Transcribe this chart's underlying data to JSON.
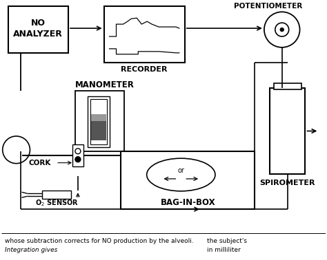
{
  "bg_color": "#ffffff",
  "line_color": "#000000",
  "dark_gray": "#555555",
  "mid_gray": "#999999",
  "figure_size": [
    4.74,
    3.78
  ],
  "dpi": 100,
  "bottom_text1": "whose subtraction corrects for NO production by the alveoli.",
  "bottom_text2": "Integration gives",
  "bottom_text3": "the subject's",
  "bottom_text4": "in milliliter"
}
